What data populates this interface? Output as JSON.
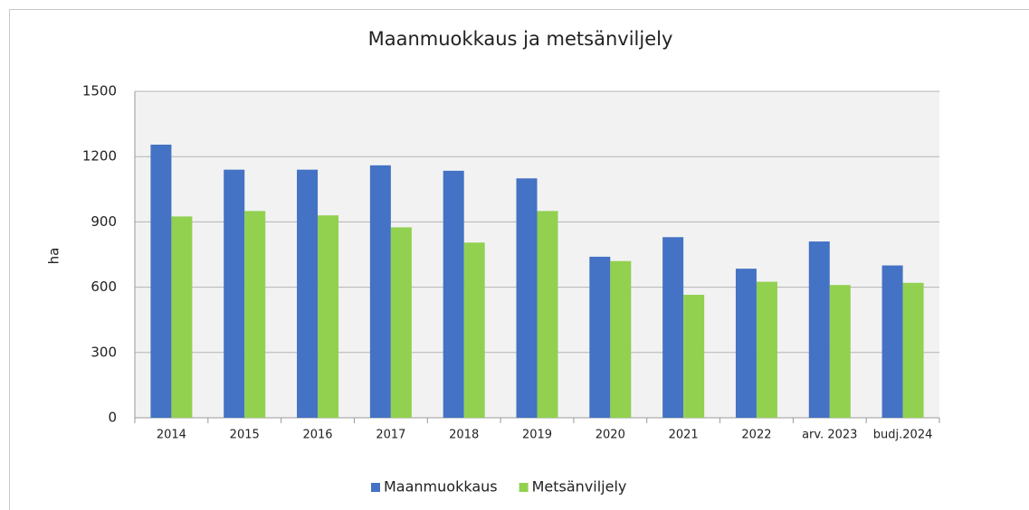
{
  "chart_data": {
    "type": "bar",
    "title": "Maanmuokkaus ja metsänviljely",
    "y_label": "ha",
    "categories": [
      "2014",
      "2015",
      "2016",
      "2017",
      "2018",
      "2019",
      "2020",
      "2021",
      "2022",
      "arv. 2023",
      "budj.2024"
    ],
    "series": [
      {
        "name": "Maanmuokkaus",
        "color": "#4472c4",
        "values": [
          1255,
          1140,
          1140,
          1160,
          1135,
          1100,
          740,
          830,
          685,
          810,
          700
        ]
      },
      {
        "name": "Metsänviljely",
        "color": "#92d050",
        "values": [
          925,
          950,
          930,
          875,
          805,
          950,
          720,
          565,
          625,
          610,
          620
        ]
      }
    ],
    "ylim": [
      0,
      1500
    ],
    "yticks": [
      0,
      300,
      600,
      900,
      1200,
      1500
    ],
    "grid": true,
    "legend": "bottom"
  }
}
